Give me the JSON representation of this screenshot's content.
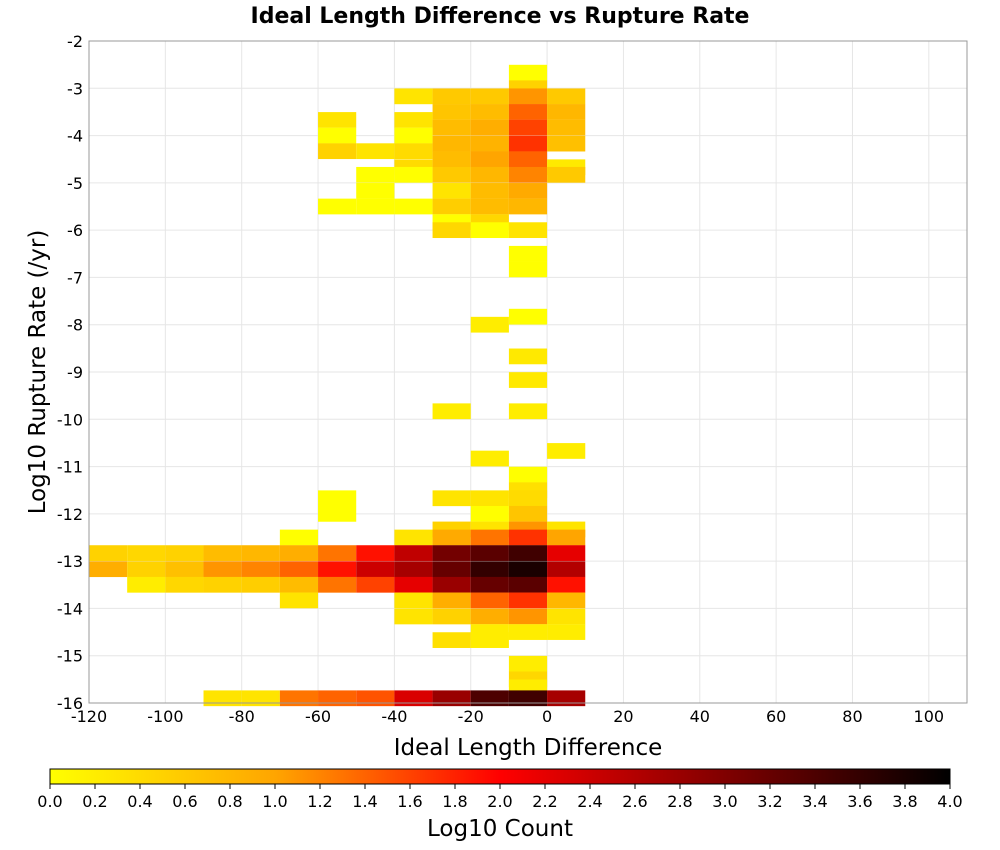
{
  "chart_data": {
    "type": "heatmap",
    "title": "Ideal Length Difference vs Rupture Rate",
    "xlabel": "Ideal Length Difference",
    "ylabel": "Log10 Rupture Rate (/yr)",
    "colorbar_label": "Log10 Count",
    "xlim": [
      -120,
      110
    ],
    "ylim": [
      -16,
      -2
    ],
    "x_ticks": [
      -120,
      -100,
      -80,
      -60,
      -40,
      -20,
      0,
      20,
      40,
      60,
      80,
      100
    ],
    "y_ticks": [
      -2,
      -3,
      -4,
      -5,
      -6,
      -7,
      -8,
      -9,
      -10,
      -11,
      -12,
      -13,
      -14,
      -15,
      -16
    ],
    "x_bin_width": 10,
    "y_bin_height": 0.333,
    "colorbar_range": [
      0.0,
      4.0
    ],
    "colorbar_ticks": [
      "0.0",
      "0.2",
      "0.4",
      "0.6",
      "0.8",
      "1.0",
      "1.2",
      "1.4",
      "1.6",
      "1.8",
      "2.0",
      "2.2",
      "2.4",
      "2.6",
      "2.8",
      "3.0",
      "3.2",
      "3.4",
      "3.6",
      "3.8",
      "4.0"
    ],
    "colormap": [
      "#ffff00",
      "#ffa500",
      "#ff0000",
      "#800000",
      "#000000"
    ],
    "grid": true,
    "legend": "colorbar-bottom",
    "cells": [
      {
        "x": -10,
        "y": -2.67,
        "v": 0.0
      },
      {
        "x": -10,
        "y": -3.0,
        "v": 0.5
      },
      {
        "x": -40,
        "y": -3.17,
        "v": 0.3
      },
      {
        "x": -30,
        "y": -3.17,
        "v": 0.6
      },
      {
        "x": -20,
        "y": -3.17,
        "v": 0.6
      },
      {
        "x": -10,
        "y": -3.17,
        "v": 1.1
      },
      {
        "x": 0,
        "y": -3.17,
        "v": 0.6
      },
      {
        "x": -30,
        "y": -3.5,
        "v": 0.65
      },
      {
        "x": -20,
        "y": -3.5,
        "v": 0.75
      },
      {
        "x": -10,
        "y": -3.5,
        "v": 1.4
      },
      {
        "x": 0,
        "y": -3.5,
        "v": 0.8
      },
      {
        "x": -60,
        "y": -3.67,
        "v": 0.3
      },
      {
        "x": -40,
        "y": -3.67,
        "v": 0.3
      },
      {
        "x": -30,
        "y": -3.83,
        "v": 0.75
      },
      {
        "x": -20,
        "y": -3.83,
        "v": 0.9
      },
      {
        "x": -10,
        "y": -3.83,
        "v": 1.6
      },
      {
        "x": 0,
        "y": -3.83,
        "v": 0.75
      },
      {
        "x": -60,
        "y": -4.0,
        "v": 0.0
      },
      {
        "x": -40,
        "y": -4.0,
        "v": 0.0
      },
      {
        "x": -60,
        "y": -4.33,
        "v": 0.5
      },
      {
        "x": -50,
        "y": -4.33,
        "v": 0.3
      },
      {
        "x": -40,
        "y": -4.33,
        "v": 0.4
      },
      {
        "x": -30,
        "y": -4.17,
        "v": 0.8
      },
      {
        "x": -20,
        "y": -4.17,
        "v": 0.85
      },
      {
        "x": -10,
        "y": -4.17,
        "v": 1.7
      },
      {
        "x": 0,
        "y": -4.17,
        "v": 0.7
      },
      {
        "x": -40,
        "y": -4.67,
        "v": 0.4
      },
      {
        "x": -30,
        "y": -4.5,
        "v": 0.75
      },
      {
        "x": -20,
        "y": -4.5,
        "v": 1.0
      },
      {
        "x": -10,
        "y": -4.5,
        "v": 1.4
      },
      {
        "x": 0,
        "y": -4.67,
        "v": 0.25
      },
      {
        "x": -50,
        "y": -4.83,
        "v": 0.0
      },
      {
        "x": -40,
        "y": -4.83,
        "v": 0.0
      },
      {
        "x": -30,
        "y": -4.83,
        "v": 0.6
      },
      {
        "x": -20,
        "y": -4.83,
        "v": 0.8
      },
      {
        "x": -10,
        "y": -4.83,
        "v": 1.2
      },
      {
        "x": 0,
        "y": -4.83,
        "v": 0.6
      },
      {
        "x": -50,
        "y": -5.17,
        "v": 0.0
      },
      {
        "x": -30,
        "y": -5.17,
        "v": 0.3
      },
      {
        "x": -20,
        "y": -5.17,
        "v": 0.75
      },
      {
        "x": -10,
        "y": -5.17,
        "v": 0.95
      },
      {
        "x": -60,
        "y": -5.5,
        "v": 0.0
      },
      {
        "x": -50,
        "y": -5.5,
        "v": 0.0
      },
      {
        "x": -40,
        "y": -5.5,
        "v": 0.0
      },
      {
        "x": -30,
        "y": -5.5,
        "v": 0.55
      },
      {
        "x": -20,
        "y": -5.5,
        "v": 0.75
      },
      {
        "x": -10,
        "y": -5.5,
        "v": 0.8
      },
      {
        "x": -30,
        "y": -5.83,
        "v": 0.0
      },
      {
        "x": -20,
        "y": -5.83,
        "v": 0.45
      },
      {
        "x": -30,
        "y": -6.0,
        "v": 0.45
      },
      {
        "x": -20,
        "y": -6.0,
        "v": 0.0
      },
      {
        "x": -10,
        "y": -6.0,
        "v": 0.3
      },
      {
        "x": -10,
        "y": -6.5,
        "v": 0.0
      },
      {
        "x": -10,
        "y": -6.83,
        "v": 0.0
      },
      {
        "x": -10,
        "y": -7.83,
        "v": 0.0
      },
      {
        "x": -20,
        "y": -8.0,
        "v": 0.2
      },
      {
        "x": -10,
        "y": -8.67,
        "v": 0.25
      },
      {
        "x": -10,
        "y": -9.17,
        "v": 0.25
      },
      {
        "x": -30,
        "y": -9.83,
        "v": 0.2
      },
      {
        "x": -10,
        "y": -9.83,
        "v": 0.2
      },
      {
        "x": 0,
        "y": -10.67,
        "v": 0.2
      },
      {
        "x": -20,
        "y": -10.83,
        "v": 0.2
      },
      {
        "x": -10,
        "y": -11.17,
        "v": 0.0
      },
      {
        "x": -10,
        "y": -11.5,
        "v": 0.35
      },
      {
        "x": -60,
        "y": -11.67,
        "v": 0.0
      },
      {
        "x": -30,
        "y": -11.67,
        "v": 0.3
      },
      {
        "x": -20,
        "y": -11.67,
        "v": 0.3
      },
      {
        "x": -10,
        "y": -11.67,
        "v": 0.4
      },
      {
        "x": -60,
        "y": -12.0,
        "v": 0.0
      },
      {
        "x": -20,
        "y": -12.0,
        "v": 0.0
      },
      {
        "x": -10,
        "y": -12.0,
        "v": 0.65
      },
      {
        "x": -30,
        "y": -12.33,
        "v": 0.5
      },
      {
        "x": -20,
        "y": -12.33,
        "v": 0.3
      },
      {
        "x": -10,
        "y": -12.33,
        "v": 1.1
      },
      {
        "x": 0,
        "y": -12.33,
        "v": 0.3
      },
      {
        "x": -70,
        "y": -12.5,
        "v": 0.0
      },
      {
        "x": -40,
        "y": -12.5,
        "v": 0.3
      },
      {
        "x": -30,
        "y": -12.5,
        "v": 0.95
      },
      {
        "x": -20,
        "y": -12.5,
        "v": 1.3
      },
      {
        "x": -10,
        "y": -12.5,
        "v": 1.7
      },
      {
        "x": 0,
        "y": -12.5,
        "v": 1.0
      },
      {
        "x": -120,
        "y": -12.83,
        "v": 0.5
      },
      {
        "x": -110,
        "y": -12.83,
        "v": 0.45
      },
      {
        "x": -100,
        "y": -12.83,
        "v": 0.5
      },
      {
        "x": -90,
        "y": -12.83,
        "v": 0.75
      },
      {
        "x": -80,
        "y": -12.83,
        "v": 0.8
      },
      {
        "x": -70,
        "y": -12.83,
        "v": 0.9
      },
      {
        "x": -60,
        "y": -12.83,
        "v": 1.3
      },
      {
        "x": -50,
        "y": -12.83,
        "v": 1.9
      },
      {
        "x": -40,
        "y": -12.83,
        "v": 2.5
      },
      {
        "x": -30,
        "y": -12.83,
        "v": 3.1
      },
      {
        "x": -20,
        "y": -12.83,
        "v": 3.3
      },
      {
        "x": -10,
        "y": -12.83,
        "v": 3.5
      },
      {
        "x": 0,
        "y": -12.83,
        "v": 2.2
      },
      {
        "x": -120,
        "y": -13.17,
        "v": 0.9
      },
      {
        "x": -110,
        "y": -13.17,
        "v": 0.5
      },
      {
        "x": -100,
        "y": -13.17,
        "v": 0.7
      },
      {
        "x": -90,
        "y": -13.17,
        "v": 1.1
      },
      {
        "x": -80,
        "y": -13.17,
        "v": 1.2
      },
      {
        "x": -70,
        "y": -13.17,
        "v": 1.4
      },
      {
        "x": -60,
        "y": -13.17,
        "v": 1.9
      },
      {
        "x": -50,
        "y": -13.17,
        "v": 2.4
      },
      {
        "x": -40,
        "y": -13.17,
        "v": 2.7
      },
      {
        "x": -30,
        "y": -13.17,
        "v": 3.2
      },
      {
        "x": -20,
        "y": -13.17,
        "v": 3.6
      },
      {
        "x": -10,
        "y": -13.17,
        "v": 3.8
      },
      {
        "x": 0,
        "y": -13.17,
        "v": 2.6
      },
      {
        "x": -110,
        "y": -13.5,
        "v": 0.2
      },
      {
        "x": -100,
        "y": -13.5,
        "v": 0.45
      },
      {
        "x": -90,
        "y": -13.5,
        "v": 0.5
      },
      {
        "x": -80,
        "y": -13.5,
        "v": 0.55
      },
      {
        "x": -70,
        "y": -13.5,
        "v": 0.75
      },
      {
        "x": -60,
        "y": -13.5,
        "v": 1.3
      },
      {
        "x": -50,
        "y": -13.5,
        "v": 1.6
      },
      {
        "x": -40,
        "y": -13.5,
        "v": 2.2
      },
      {
        "x": -30,
        "y": -13.5,
        "v": 2.8
      },
      {
        "x": -20,
        "y": -13.5,
        "v": 3.2
      },
      {
        "x": -10,
        "y": -13.5,
        "v": 3.3
      },
      {
        "x": 0,
        "y": -13.5,
        "v": 1.9
      },
      {
        "x": -70,
        "y": -13.83,
        "v": 0.3
      },
      {
        "x": -40,
        "y": -13.83,
        "v": 0.3
      },
      {
        "x": -30,
        "y": -13.83,
        "v": 0.9
      },
      {
        "x": -20,
        "y": -13.83,
        "v": 1.4
      },
      {
        "x": -10,
        "y": -13.83,
        "v": 1.7
      },
      {
        "x": 0,
        "y": -13.83,
        "v": 0.8
      },
      {
        "x": -40,
        "y": -14.17,
        "v": 0.3
      },
      {
        "x": -30,
        "y": -14.17,
        "v": 0.5
      },
      {
        "x": -20,
        "y": -14.17,
        "v": 0.9
      },
      {
        "x": -10,
        "y": -14.17,
        "v": 1.1
      },
      {
        "x": 0,
        "y": -14.17,
        "v": 0.3
      },
      {
        "x": -20,
        "y": -14.5,
        "v": 0.2
      },
      {
        "x": -10,
        "y": -14.5,
        "v": 0.2
      },
      {
        "x": 0,
        "y": -14.5,
        "v": 0.2
      },
      {
        "x": -30,
        "y": -14.67,
        "v": 0.35
      },
      {
        "x": -20,
        "y": -14.67,
        "v": 0.2
      },
      {
        "x": -10,
        "y": -15.17,
        "v": 0.2
      },
      {
        "x": -10,
        "y": -15.5,
        "v": 0.45
      },
      {
        "x": -10,
        "y": -15.67,
        "v": 0.2
      },
      {
        "x": -90,
        "y": -15.9,
        "v": 0.3
      },
      {
        "x": -80,
        "y": -15.9,
        "v": 0.3
      },
      {
        "x": -70,
        "y": -15.9,
        "v": 1.3
      },
      {
        "x": -60,
        "y": -15.9,
        "v": 1.4
      },
      {
        "x": -50,
        "y": -15.9,
        "v": 1.5
      },
      {
        "x": -40,
        "y": -15.9,
        "v": 2.3
      },
      {
        "x": -30,
        "y": -15.9,
        "v": 2.8
      },
      {
        "x": -20,
        "y": -15.9,
        "v": 3.4
      },
      {
        "x": -10,
        "y": -15.9,
        "v": 3.5
      },
      {
        "x": 0,
        "y": -15.9,
        "v": 2.7
      }
    ]
  }
}
